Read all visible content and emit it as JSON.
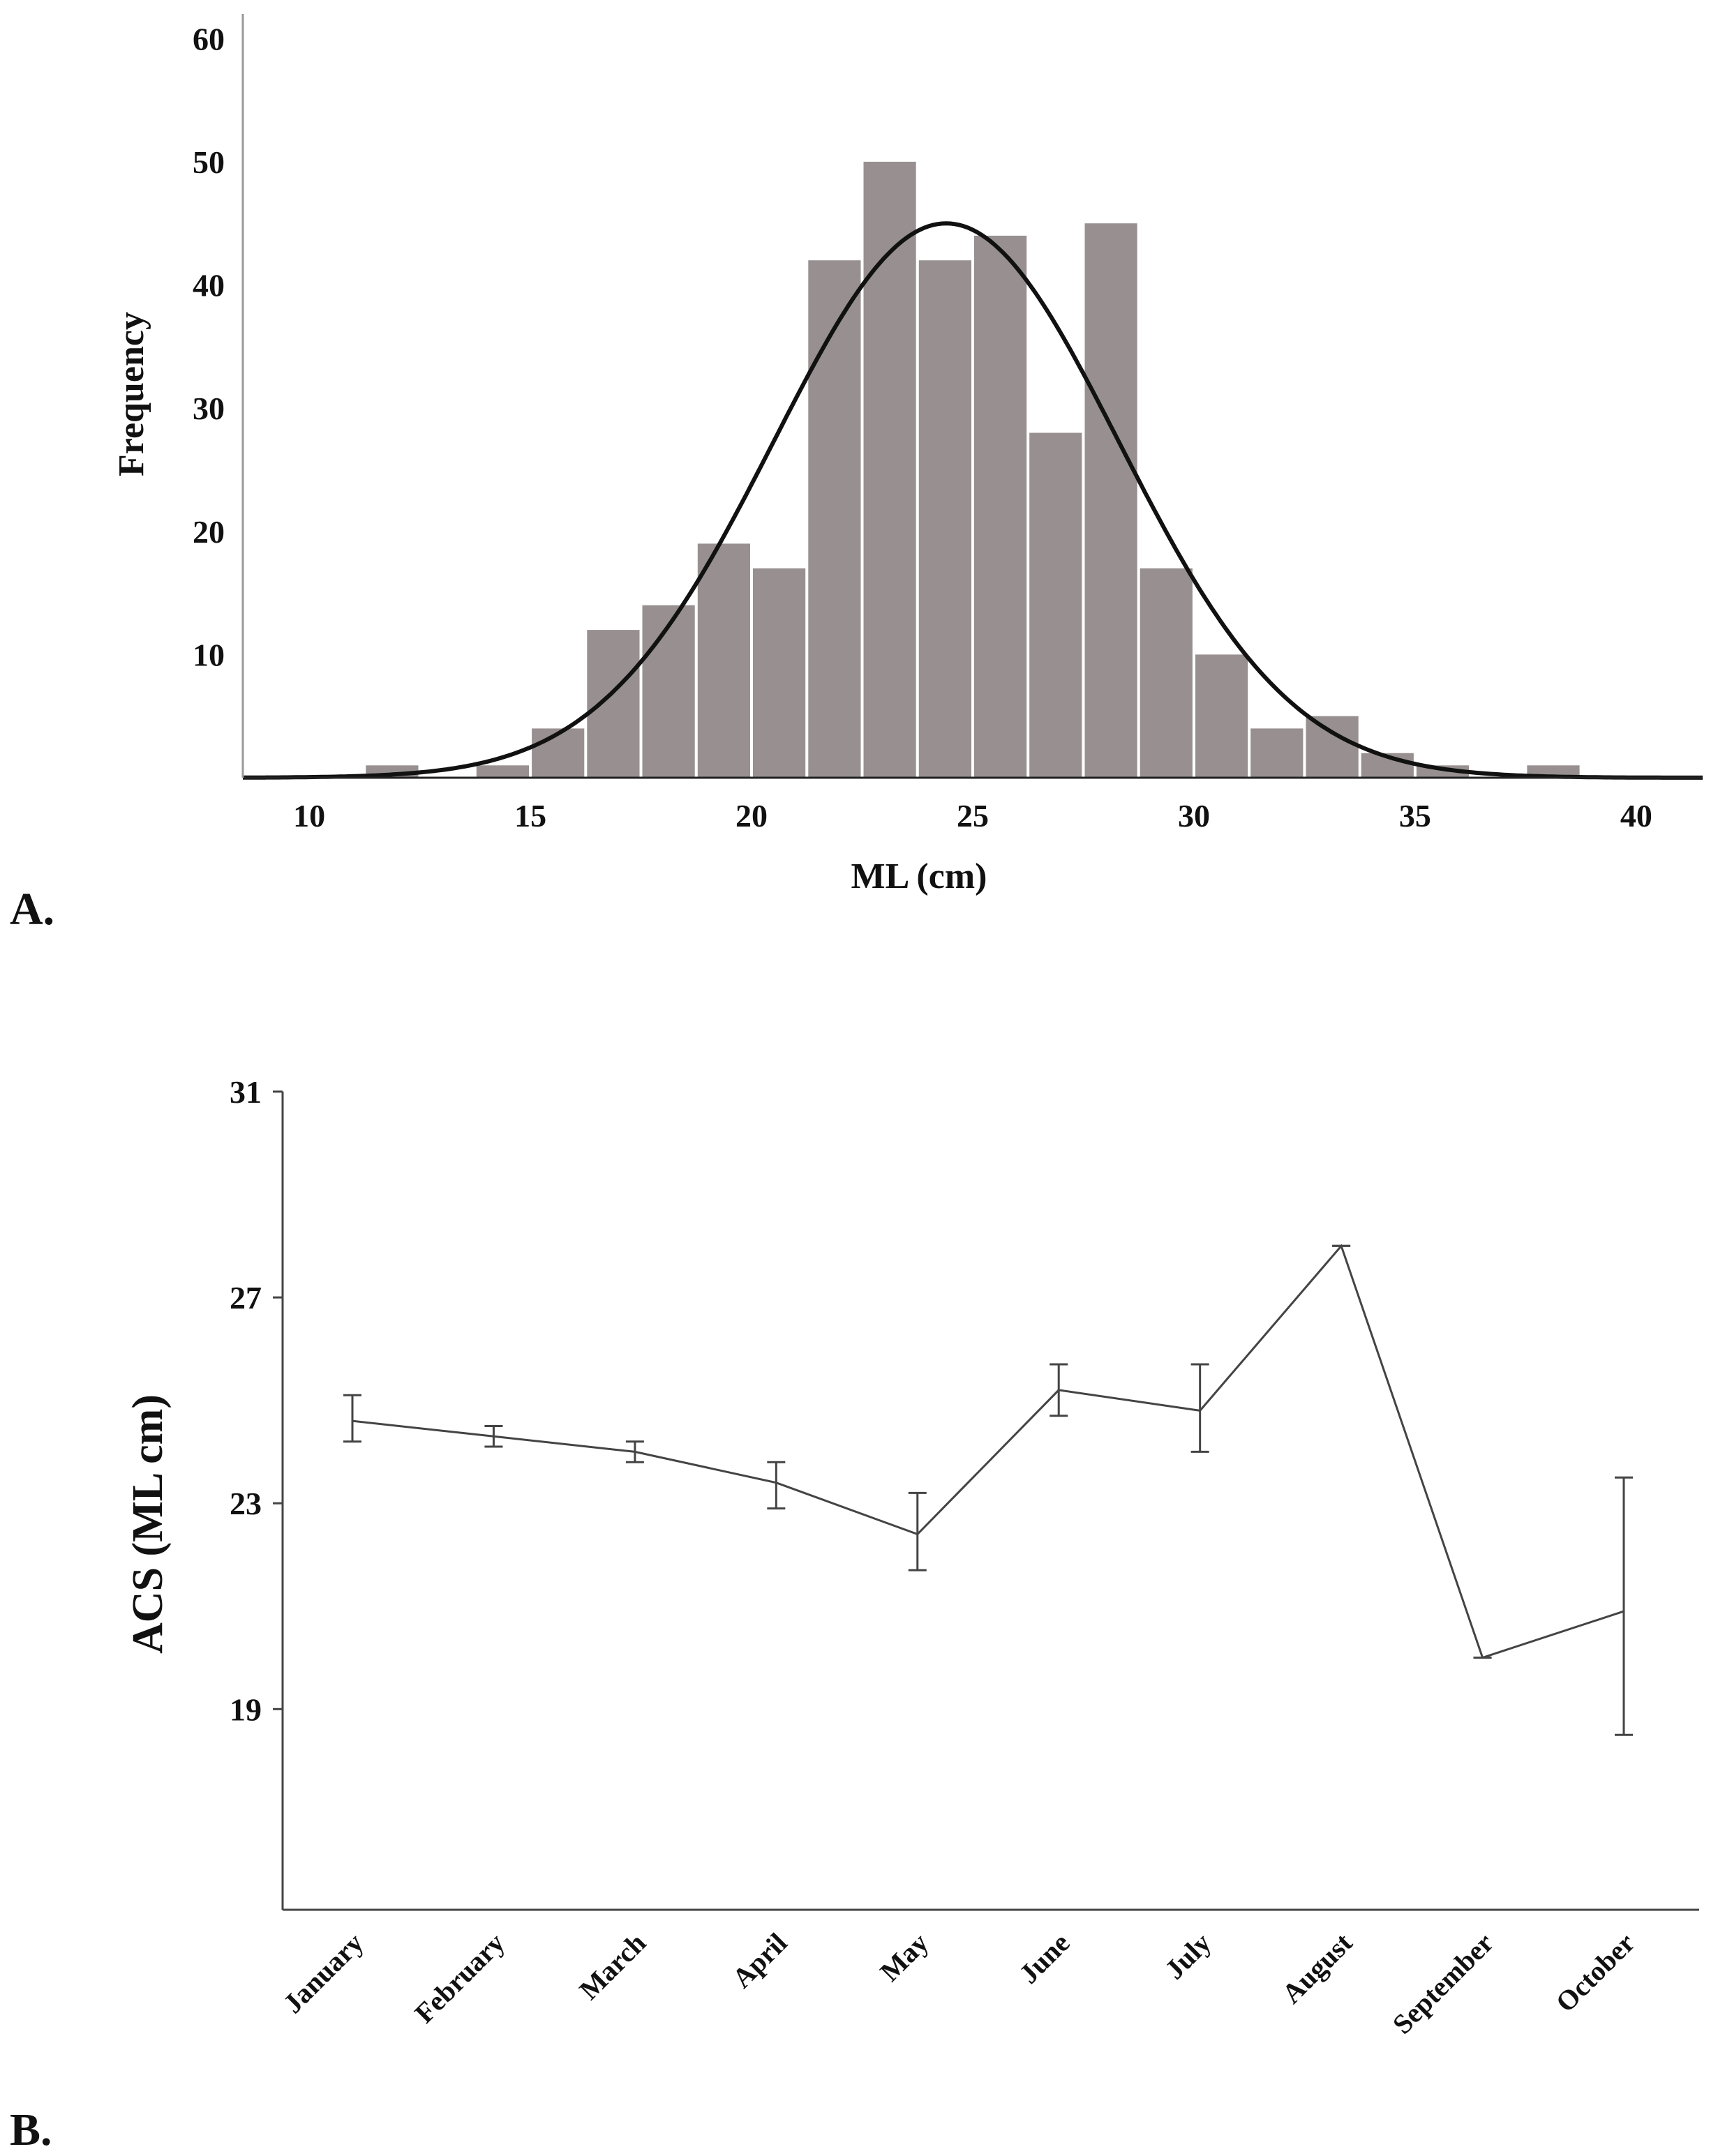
{
  "chart_data": [
    {
      "type": "bar",
      "panel_label": "A.",
      "xlabel": "ML (cm)",
      "ylabel": "Frequency",
      "xlim": [
        8.5,
        41.5
      ],
      "ylim": [
        0,
        62
      ],
      "xticks": [
        10,
        15,
        20,
        25,
        30,
        35,
        40
      ],
      "yticks": [
        10,
        20,
        30,
        40,
        50,
        60
      ],
      "bin_width": 1.25,
      "bin_starts": [
        11.25,
        12.5,
        13.75,
        15.0,
        16.25,
        17.5,
        18.75,
        20.0,
        21.25,
        22.5,
        23.75,
        25.0,
        26.25,
        27.5,
        28.75,
        30.0,
        31.25,
        32.5,
        33.75,
        35.0,
        36.25,
        37.5
      ],
      "values": [
        1,
        0,
        1,
        4,
        12,
        14,
        19,
        17,
        42,
        50,
        42,
        44,
        28,
        45,
        17,
        10,
        4,
        5,
        2,
        1,
        0,
        1
      ],
      "bar_color": "#989090",
      "fit_curve": {
        "type": "normal",
        "mean": 24.4,
        "sd": 3.9,
        "peak": 45,
        "color": "#111111"
      }
    },
    {
      "type": "line",
      "panel_label": "B.",
      "ylabel": "ACS (ML cm)",
      "xlabel": "",
      "categories": [
        "January",
        "February",
        "March",
        "April",
        "May",
        "June",
        "July",
        "August",
        "September",
        "October"
      ],
      "values": [
        24.6,
        24.3,
        24.0,
        23.4,
        22.4,
        25.2,
        24.8,
        28.0,
        20.0,
        20.9
      ],
      "error_low": [
        24.2,
        24.1,
        23.8,
        22.9,
        21.7,
        24.7,
        24.0,
        28.0,
        20.0,
        18.5
      ],
      "error_high": [
        25.1,
        24.5,
        24.2,
        23.8,
        23.2,
        25.7,
        25.7,
        28.0,
        20.0,
        23.5
      ],
      "ylim": [
        15.1,
        31
      ],
      "yticks": [
        19,
        23,
        27,
        31
      ],
      "line_color": "#444444"
    }
  ]
}
